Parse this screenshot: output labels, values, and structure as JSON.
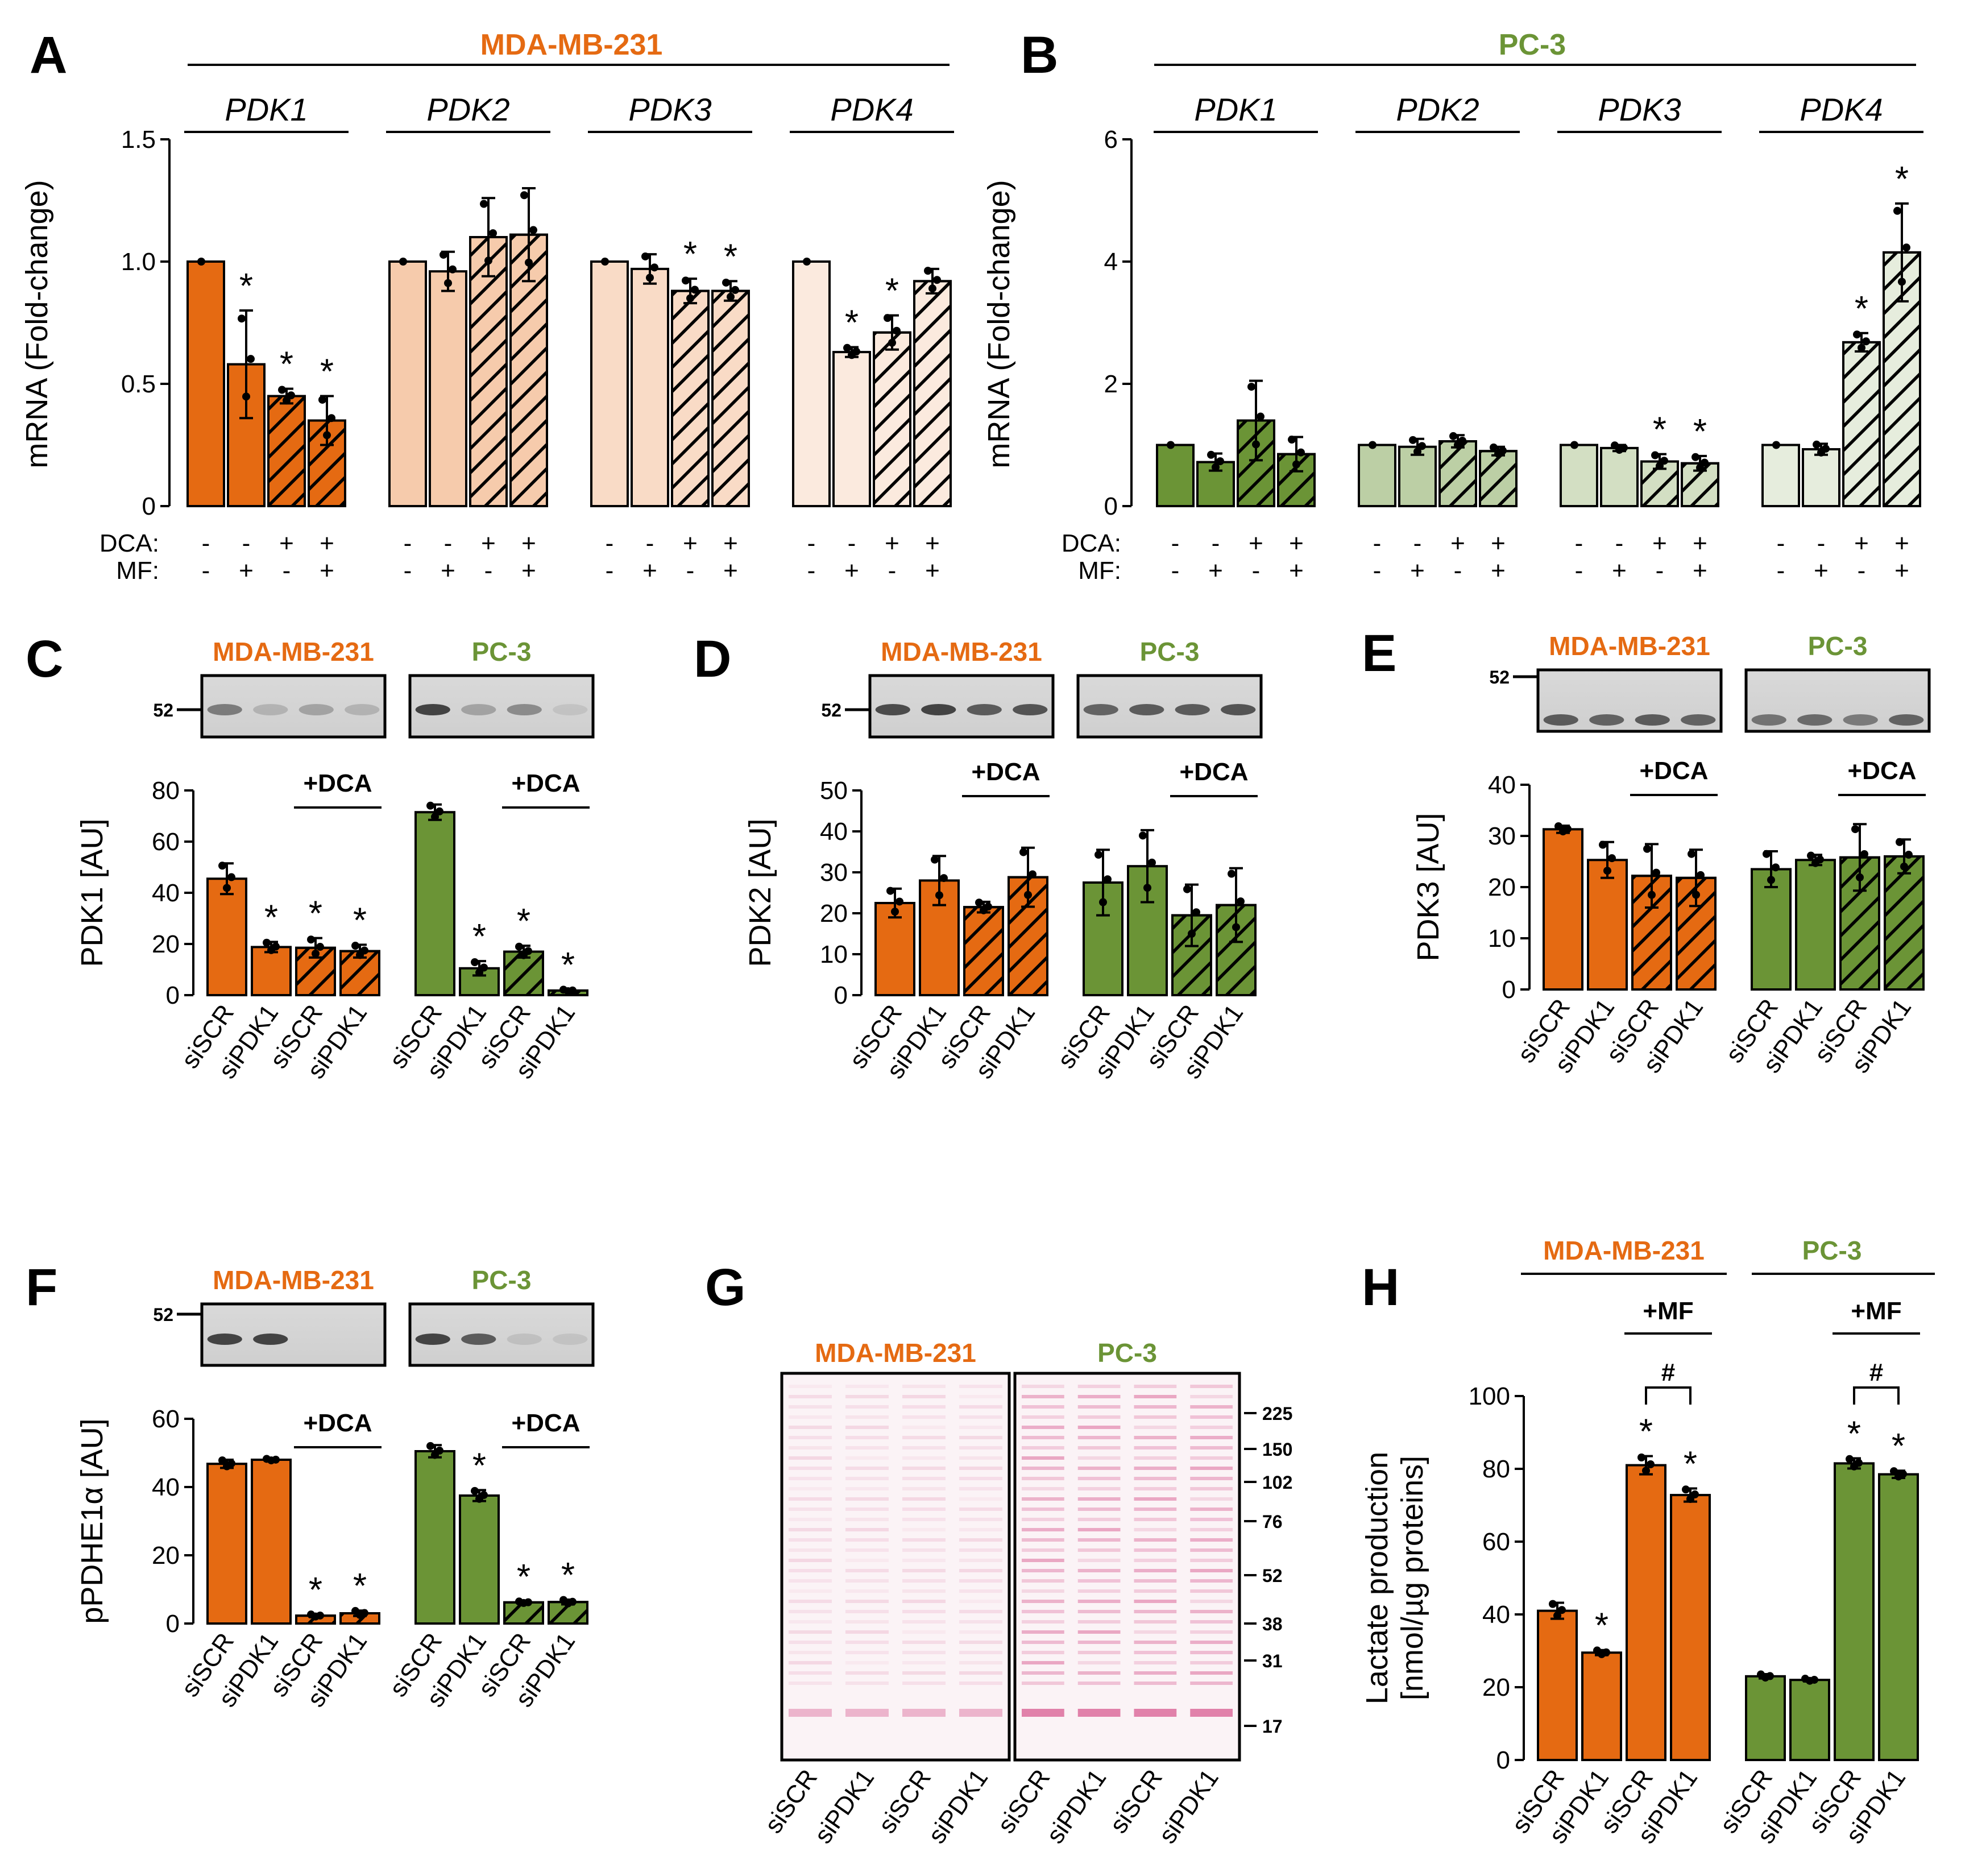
{
  "colors": {
    "orange": "#e56a12",
    "green": "#6b9436",
    "black": "#000000"
  },
  "chart_data": [
    {
      "panel": "A",
      "type": "bar",
      "title": "MDA-MB-231",
      "ylabel": "mRNA (Fold-change)",
      "ylim": [
        0,
        1.5
      ],
      "yticks": [
        "0",
        "0.5",
        "1.0",
        "1.5"
      ],
      "groups": [
        "PDK1",
        "PDK2",
        "PDK3",
        "PDK4"
      ],
      "conditions_label": [
        "DCA:",
        "MF:"
      ],
      "dca": [
        "-",
        "-",
        "+",
        "+"
      ],
      "mf": [
        "-",
        "+",
        "-",
        "+"
      ],
      "series": [
        {
          "name": "PDK1",
          "values": [
            1.0,
            0.58,
            0.45,
            0.35
          ],
          "err": [
            0.0,
            0.22,
            0.03,
            0.1
          ]
        },
        {
          "name": "PDK2",
          "values": [
            1.0,
            0.96,
            1.1,
            1.11
          ],
          "err": [
            0.0,
            0.08,
            0.16,
            0.19
          ]
        },
        {
          "name": "PDK3",
          "values": [
            1.0,
            0.97,
            0.88,
            0.88
          ],
          "err": [
            0.0,
            0.06,
            0.05,
            0.04
          ]
        },
        {
          "name": "PDK4",
          "values": [
            1.0,
            0.63,
            0.71,
            0.92
          ],
          "err": [
            0.0,
            0.02,
            0.07,
            0.05
          ]
        }
      ],
      "stars": [
        [
          "",
          "*",
          "*",
          "*"
        ],
        [
          "",
          "",
          "",
          ""
        ],
        [
          "",
          "",
          "*",
          "*"
        ],
        [
          "",
          "*",
          "*",
          ""
        ]
      ]
    },
    {
      "panel": "B",
      "type": "bar",
      "title": "PC-3",
      "ylabel": "mRNA (Fold-change)",
      "ylim": [
        0,
        6
      ],
      "yticks": [
        "0",
        "2",
        "4",
        "6"
      ],
      "groups": [
        "PDK1",
        "PDK2",
        "PDK3",
        "PDK4"
      ],
      "conditions_label": [
        "DCA:",
        "MF:"
      ],
      "dca": [
        "-",
        "-",
        "+",
        "+"
      ],
      "mf": [
        "-",
        "+",
        "-",
        "+"
      ],
      "series": [
        {
          "name": "PDK1",
          "values": [
            1.0,
            0.72,
            1.4,
            0.85
          ],
          "err": [
            0.0,
            0.14,
            0.65,
            0.28
          ]
        },
        {
          "name": "PDK2",
          "values": [
            1.0,
            0.97,
            1.06,
            0.9
          ],
          "err": [
            0.0,
            0.13,
            0.1,
            0.07
          ]
        },
        {
          "name": "PDK3",
          "values": [
            1.0,
            0.95,
            0.73,
            0.7
          ],
          "err": [
            0.0,
            0.05,
            0.12,
            0.12
          ]
        },
        {
          "name": "PDK4",
          "values": [
            1.0,
            0.93,
            2.68,
            4.15
          ],
          "err": [
            0.0,
            0.09,
            0.15,
            0.8
          ]
        }
      ],
      "stars": [
        [
          "",
          "",
          "",
          ""
        ],
        [
          "",
          "",
          "",
          ""
        ],
        [
          "",
          "",
          "*",
          "*"
        ],
        [
          "",
          "",
          "*",
          "*"
        ]
      ]
    },
    {
      "panel": "C",
      "type": "bar",
      "ylabel": "PDK1 [AU]",
      "ylim": [
        0,
        80
      ],
      "yticks": [
        "0",
        "20",
        "40",
        "60",
        "80"
      ],
      "blot_titles": [
        "MDA-MB-231",
        "PC-3"
      ],
      "mw": "52",
      "treatment": "+DCA",
      "categories": [
        "siSCR",
        "siPDK1",
        "siSCR",
        "siPDK1",
        "siSCR",
        "siPDK1",
        "siSCR",
        "siPDK1"
      ],
      "values": [
        45.5,
        18.8,
        18.5,
        17.2,
        71.5,
        10.5,
        17.0,
        1.8
      ],
      "err": [
        6.0,
        2.0,
        3.8,
        2.5,
        3.0,
        2.8,
        2.3,
        0.4
      ],
      "stars": [
        "",
        "*",
        "*",
        "*",
        "",
        "*",
        "*",
        "*"
      ]
    },
    {
      "panel": "D",
      "type": "bar",
      "ylabel": "PDK2 [AU]",
      "ylim": [
        0,
        50
      ],
      "yticks": [
        "0",
        "10",
        "20",
        "30",
        "40",
        "50"
      ],
      "blot_titles": [
        "MDA-MB-231",
        "PC-3"
      ],
      "mw": "52",
      "treatment": "+DCA",
      "categories": [
        "siSCR",
        "siPDK1",
        "siSCR",
        "siPDK1",
        "siSCR",
        "siPDK1",
        "siSCR",
        "siPDK1"
      ],
      "values": [
        22.5,
        28.0,
        21.5,
        28.8,
        27.5,
        31.5,
        19.5,
        22.0
      ],
      "err": [
        3.5,
        6.0,
        1.3,
        7.2,
        8.0,
        8.8,
        7.5,
        9.0
      ],
      "stars": [
        "",
        "",
        "",
        "",
        "",
        "",
        "",
        ""
      ]
    },
    {
      "panel": "E",
      "type": "bar",
      "ylabel": "PDK3 [AU]",
      "ylim": [
        0,
        40
      ],
      "yticks": [
        "0",
        "10",
        "20",
        "30",
        "40"
      ],
      "blot_titles": [
        "MDA-MB-231",
        "PC-3"
      ],
      "mw": "52",
      "treatment": "+DCA",
      "categories": [
        "siSCR",
        "siPDK1",
        "siSCR",
        "siPDK1",
        "siSCR",
        "siPDK1",
        "siSCR",
        "siPDK1"
      ],
      "values": [
        31.3,
        25.3,
        22.2,
        21.8,
        23.5,
        25.3,
        25.8,
        26.0
      ],
      "err": [
        0.7,
        3.5,
        6.2,
        5.5,
        3.5,
        1.0,
        6.5,
        3.3
      ],
      "stars": [
        "",
        "",
        "",
        "",
        "",
        "",
        "",
        ""
      ]
    },
    {
      "panel": "F",
      "type": "bar",
      "ylabel": "pPDHE1α [AU]",
      "ylim": [
        0,
        60
      ],
      "yticks": [
        "0",
        "20",
        "40",
        "60"
      ],
      "blot_titles": [
        "MDA-MB-231",
        "PC-3"
      ],
      "mw": "52",
      "treatment": "+DCA",
      "categories": [
        "siSCR",
        "siPDK1",
        "siSCR",
        "siPDK1",
        "siSCR",
        "siPDK1",
        "siSCR",
        "siPDK1"
      ],
      "values": [
        46.8,
        48.0,
        2.3,
        3.0,
        50.5,
        37.5,
        6.2,
        6.3
      ],
      "err": [
        1.2,
        0.3,
        0.4,
        0.8,
        1.8,
        1.6,
        0.3,
        0.7
      ],
      "stars": [
        "",
        "",
        "*",
        "*",
        "",
        "*",
        "*",
        "*"
      ]
    },
    {
      "panel": "H",
      "type": "bar",
      "ylabel": [
        "Lactate production",
        "[nmol/µg proteins]"
      ],
      "ylim": [
        0,
        100
      ],
      "yticks": [
        "0",
        "20",
        "40",
        "60",
        "80",
        "100"
      ],
      "group_titles": [
        "MDA-MB-231",
        "PC-3"
      ],
      "treatment": "+MF",
      "hash": "#",
      "categories": [
        "siSCR",
        "siPDK1",
        "siSCR",
        "siPDK1",
        "siSCR",
        "siPDK1",
        "siSCR",
        "siPDK1"
      ],
      "values": [
        41.0,
        29.5,
        81.0,
        72.8,
        23.0,
        22.0,
        81.5,
        78.5
      ],
      "err": [
        2.2,
        0.7,
        2.5,
        1.8,
        0.6,
        0.4,
        1.4,
        1.0
      ],
      "stars": [
        "",
        "*",
        "*",
        "*",
        "",
        "",
        "*",
        "*"
      ]
    }
  ],
  "panel_g": {
    "letter": "G",
    "blot_titles": [
      "MDA-MB-231",
      "PC-3"
    ],
    "markers": [
      "225",
      "150",
      "102",
      "76",
      "52",
      "38",
      "31",
      "17"
    ],
    "lanes": [
      "siSCR",
      "siPDK1",
      "siSCR",
      "siPDK1",
      "siSCR",
      "siPDK1",
      "siSCR",
      "siPDK1"
    ]
  }
}
